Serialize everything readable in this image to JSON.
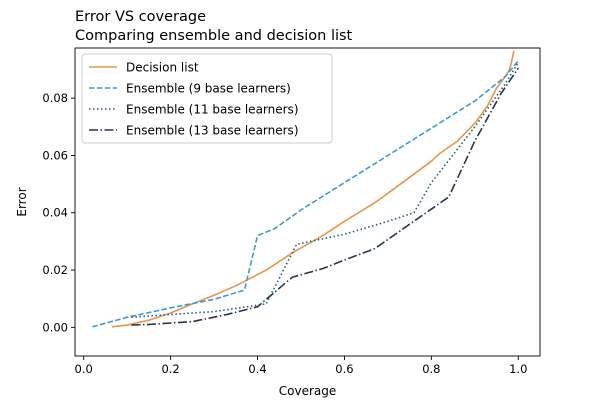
{
  "chart_data": {
    "type": "line",
    "title": "Error VS coverage",
    "subtitle": "Comparing ensemble and decision list",
    "xlabel": "Coverage",
    "ylabel": "Error",
    "xlim": [
      -0.02,
      1.05
    ],
    "ylim": [
      -0.01,
      0.0975
    ],
    "xticks": [
      0.0,
      0.2,
      0.4,
      0.6,
      0.8,
      1.0
    ],
    "xtick_labels": [
      "0.0",
      "0.2",
      "0.4",
      "0.6",
      "0.8",
      "1.0"
    ],
    "yticks": [
      0.0,
      0.02,
      0.04,
      0.06,
      0.08
    ],
    "ytick_labels": [
      "0.00",
      "0.02",
      "0.04",
      "0.06",
      "0.08"
    ],
    "grid": false,
    "legend_position": "upper-left",
    "series": [
      {
        "name": "Decision list",
        "color": "#e8964a",
        "style": "solid",
        "x": [
          0.065,
          0.1,
          0.15,
          0.2,
          0.25,
          0.3,
          0.35,
          0.42,
          0.48,
          0.55,
          0.6,
          0.67,
          0.72,
          0.76,
          0.8,
          0.82,
          0.83,
          0.86,
          0.9,
          0.93,
          0.95,
          0.97,
          0.98,
          0.985,
          0.99
        ],
        "y": [
          0.0002,
          0.0008,
          0.0025,
          0.005,
          0.0082,
          0.0112,
          0.0145,
          0.02,
          0.026,
          0.032,
          0.037,
          0.0435,
          0.049,
          0.0535,
          0.058,
          0.0608,
          0.0618,
          0.065,
          0.0712,
          0.0775,
          0.0835,
          0.0875,
          0.09,
          0.093,
          0.0965
        ]
      },
      {
        "name": "Ensemble (9 base learners)",
        "color": "#3c9ad6",
        "style": "dashed",
        "x": [
          0.02,
          0.1,
          0.2,
          0.3,
          0.37,
          0.4,
          0.44,
          0.5,
          0.6,
          0.7,
          0.8,
          0.9,
          0.97,
          1.0
        ],
        "y": [
          0.0002,
          0.0035,
          0.0068,
          0.0098,
          0.013,
          0.032,
          0.0345,
          0.041,
          0.0505,
          0.06,
          0.0695,
          0.079,
          0.0875,
          0.093
        ]
      },
      {
        "name": "Ensemble (11 base learners)",
        "color": "#1f5e8c",
        "style": "dotted",
        "x": [
          0.11,
          0.2,
          0.3,
          0.39,
          0.42,
          0.49,
          0.6,
          0.7,
          0.76,
          0.8,
          0.9,
          0.97,
          1.0
        ],
        "y": [
          0.0035,
          0.0045,
          0.0055,
          0.0075,
          0.0082,
          0.029,
          0.0325,
          0.037,
          0.04,
          0.0505,
          0.07,
          0.085,
          0.0925
        ]
      },
      {
        "name": "Ensemble (13 base learners)",
        "color": "#27374d",
        "style": "dashdot",
        "x": [
          0.11,
          0.15,
          0.25,
          0.33,
          0.4,
          0.48,
          0.55,
          0.6,
          0.67,
          0.75,
          0.84,
          0.9,
          0.96,
          1.0
        ],
        "y": [
          0.0008,
          0.001,
          0.002,
          0.0045,
          0.0072,
          0.0175,
          0.0205,
          0.0235,
          0.0275,
          0.036,
          0.0455,
          0.065,
          0.0815,
          0.0905
        ]
      }
    ]
  }
}
